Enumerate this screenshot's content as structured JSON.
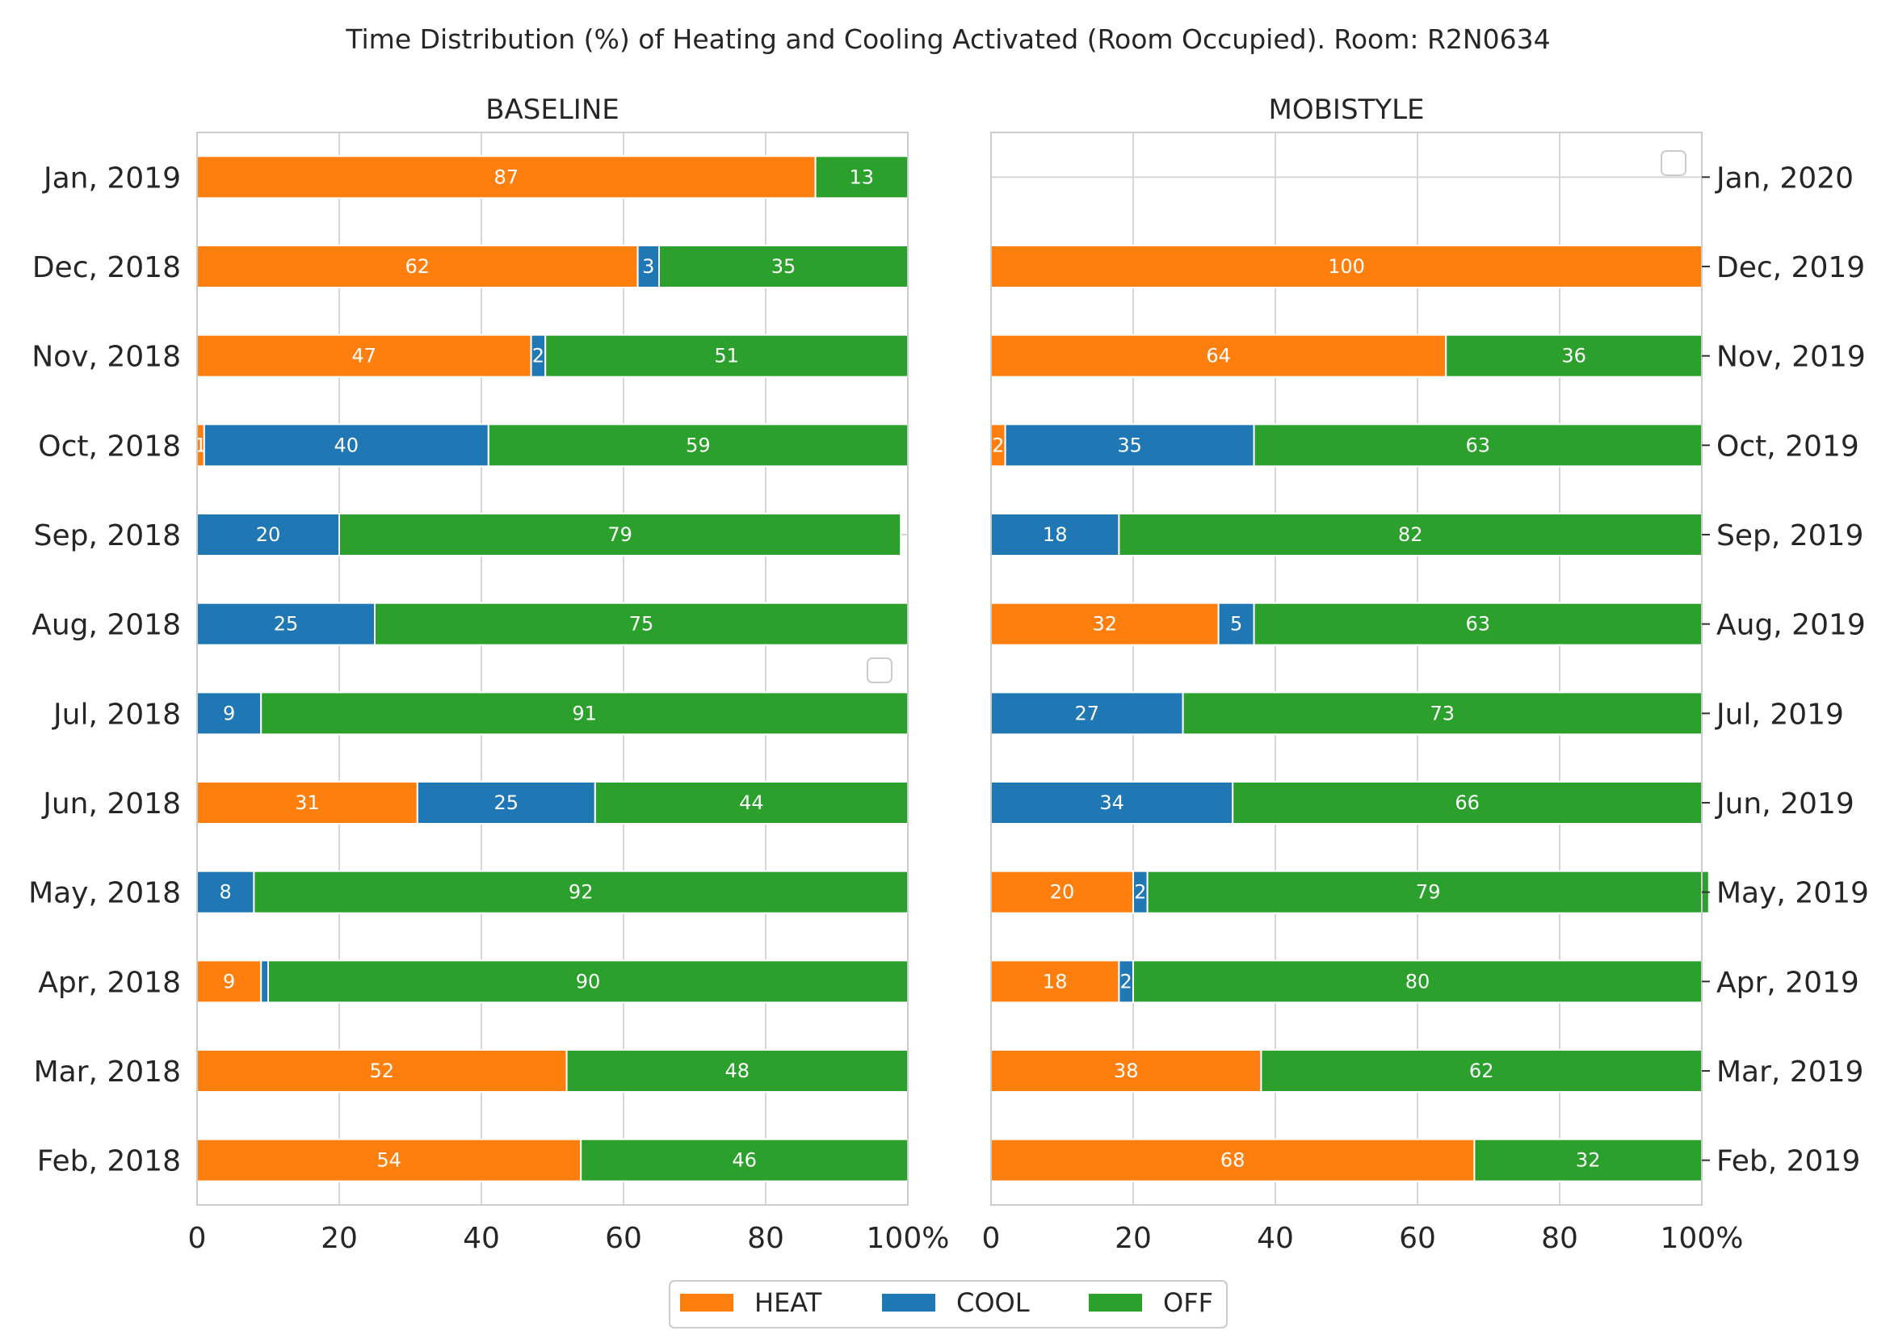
{
  "chart_data": {
    "type": "bar",
    "orientation": "horizontal",
    "stacked": true,
    "title": "Time Distribution (%) of Heating and Cooling Activated (Room Occupied). Room: R2N0634",
    "xlim": [
      0,
      100
    ],
    "x_ticks": [
      "0",
      "20",
      "40",
      "60",
      "80",
      "100%"
    ],
    "grid": true,
    "colors": {
      "HEAT": "#ff7f0e",
      "COOL": "#1f77b4",
      "OFF": "#2ca02c"
    },
    "legend": {
      "placement": "bottom-center",
      "entries": [
        "HEAT",
        "COOL",
        "OFF"
      ]
    },
    "panels": [
      {
        "title": "BASELINE",
        "categories": [
          "Jan, 2019",
          "Dec, 2018",
          "Nov, 2018",
          "Oct, 2018",
          "Sep, 2018",
          "Aug, 2018",
          "Jul, 2018",
          "Jun, 2018",
          "May, 2018",
          "Apr, 2018",
          "Mar, 2018",
          "Feb, 2018"
        ],
        "series": [
          {
            "name": "HEAT",
            "values": [
              87,
              62,
              47,
              1,
              0,
              0,
              0,
              31,
              0,
              9,
              52,
              54
            ],
            "labels": [
              "87",
              "62",
              "47",
              "1",
              "",
              "",
              "",
              "31",
              "",
              "9",
              "52",
              "54"
            ]
          },
          {
            "name": "COOL",
            "values": [
              0,
              3,
              2,
              40,
              20,
              25,
              9,
              25,
              8,
              1,
              0,
              0
            ],
            "labels": [
              "",
              "3",
              "2",
              "40",
              "20",
              "25",
              "9",
              "25",
              "8",
              "",
              "",
              ""
            ]
          },
          {
            "name": "OFF",
            "values": [
              13,
              35,
              51,
              59,
              79,
              75,
              91,
              44,
              92,
              90,
              48,
              46
            ],
            "labels": [
              "13",
              "35",
              "51",
              "59",
              "79",
              "75",
              "91",
              "44",
              "92",
              "90",
              "48",
              "46"
            ]
          }
        ]
      },
      {
        "title": "MOBISTYLE",
        "categories": [
          "Jan, 2020",
          "Dec, 2019",
          "Nov, 2019",
          "Oct, 2019",
          "Sep, 2019",
          "Aug, 2019",
          "Jul, 2019",
          "Jun, 2019",
          "May, 2019",
          "Apr, 2019",
          "Mar, 2019",
          "Feb, 2019"
        ],
        "series": [
          {
            "name": "HEAT",
            "values": [
              0,
              100,
              64,
              2,
              0,
              32,
              0,
              0,
              20,
              18,
              38,
              68
            ],
            "labels": [
              "",
              "100",
              "64",
              "2",
              "",
              "32",
              "",
              "",
              "20",
              "18",
              "38",
              "68"
            ]
          },
          {
            "name": "COOL",
            "values": [
              0,
              0,
              0,
              35,
              18,
              5,
              27,
              34,
              2,
              2,
              0,
              0
            ],
            "labels": [
              "",
              "",
              "",
              "35",
              "18",
              "5",
              "27",
              "34",
              "2",
              "2",
              "",
              ""
            ]
          },
          {
            "name": "OFF",
            "values": [
              0,
              0,
              36,
              63,
              82,
              63,
              73,
              66,
              79,
              80,
              62,
              32
            ],
            "labels": [
              "",
              "",
              "36",
              "63",
              "82",
              "63",
              "73",
              "66",
              "79",
              "80",
              "62",
              "32"
            ]
          }
        ]
      }
    ]
  }
}
